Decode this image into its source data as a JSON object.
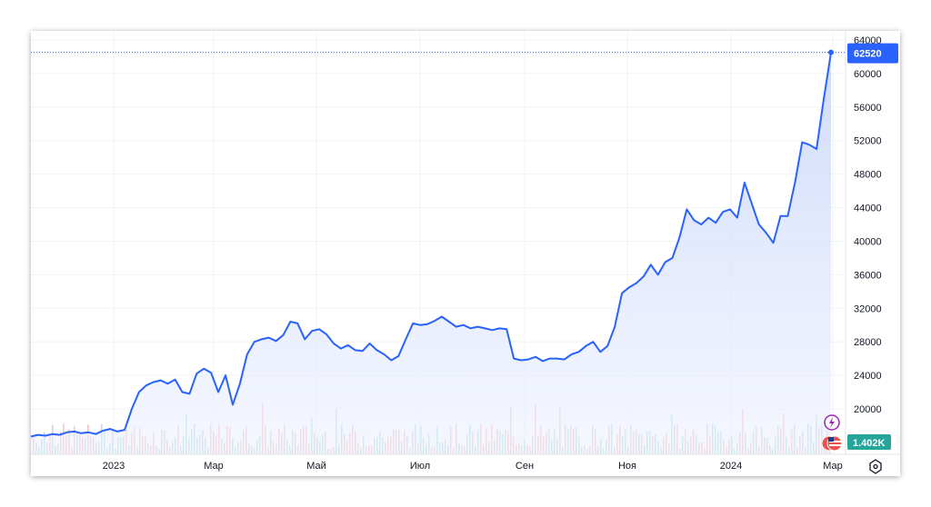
{
  "chart_data": {
    "type": "line",
    "y_ticks": [
      "64000",
      "60000",
      "56000",
      "52000",
      "48000",
      "44000",
      "40000",
      "36000",
      "32000",
      "28000",
      "24000",
      "20000"
    ],
    "x_ticks": [
      "2023",
      "Мар",
      "Май",
      "Июл",
      "Сен",
      "Ноя",
      "2024",
      "Мар"
    ],
    "ylim": [
      17500,
      65000
    ],
    "last_price": 62520,
    "last_price_label": "62520",
    "volume_label": "1.402K",
    "colors": {
      "line": "#2962ff",
      "fill_top": "#c9d6fb",
      "up": "#26a69a",
      "down": "#ef5350",
      "price_tag": "#2962ff",
      "vol_tag": "#26a69a"
    },
    "x_index_range": [
      0,
      107
    ],
    "series": [
      {
        "values": [
          16700,
          16900,
          16800,
          17000,
          16900,
          17200,
          17300,
          17100,
          17200,
          17000,
          17400,
          17600,
          17300,
          17500,
          20000,
          22000,
          22800,
          23200,
          23400,
          23000,
          23500,
          22000,
          21800,
          24200,
          24800,
          24300,
          22000,
          24000,
          20500,
          23000,
          26500,
          28000,
          28300,
          28500,
          28100,
          28800,
          30400,
          30200,
          28300,
          29300,
          29500,
          28900,
          27800,
          27200,
          27600,
          27000,
          26900,
          27800,
          27000,
          26500,
          25800,
          26300,
          28300,
          30200,
          30000,
          30100,
          30500,
          31000,
          30400,
          29800,
          30000,
          29600,
          29800,
          29600,
          29400,
          29600,
          29500,
          26000,
          25800,
          25900,
          26200,
          25700,
          26000,
          26000,
          25900,
          26500,
          26800,
          27500,
          28000,
          26800,
          27500,
          29800,
          33800,
          34500,
          35000,
          35800,
          37200,
          36000,
          37500,
          38000,
          40500,
          43800,
          42500,
          42000,
          42800,
          42200,
          43500,
          43800,
          42800,
          47000,
          44500,
          42000,
          41000,
          39800,
          43000,
          43000,
          47000,
          51800,
          51500,
          51000,
          57000,
          62520
        ]
      }
    ]
  }
}
